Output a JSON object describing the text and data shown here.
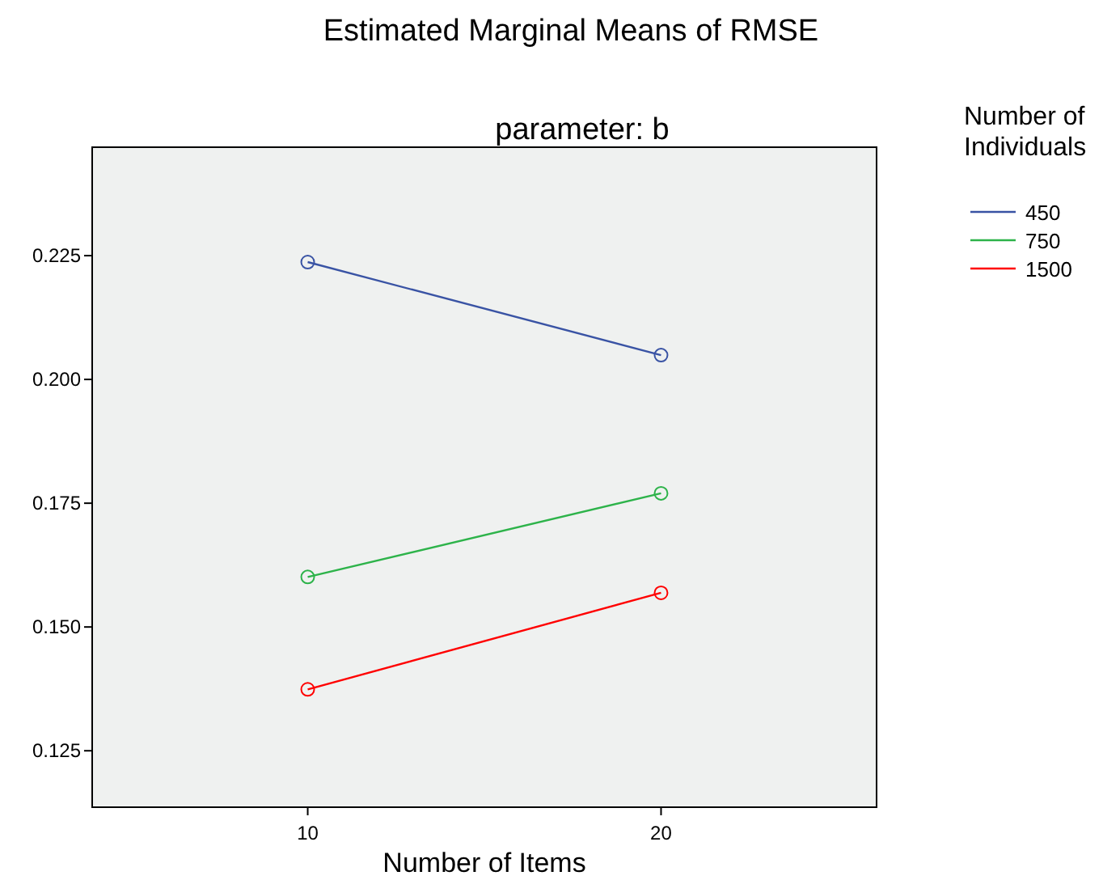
{
  "chart_data": {
    "type": "line",
    "title": "Estimated Marginal Means of RMSE",
    "subtitle": "parameter: b",
    "xlabel": "Number of Items",
    "legend_title": "Number of Individuals",
    "x": [
      10,
      20
    ],
    "xlim": [
      3.9,
      26.1
    ],
    "xticks": [
      10,
      20
    ],
    "ylim": [
      0.1136,
      0.2469
    ],
    "yticks": [
      {
        "value": 0.125,
        "label": "0.125"
      },
      {
        "value": 0.15,
        "label": "0.150"
      },
      {
        "value": 0.175,
        "label": "0.175"
      },
      {
        "value": 0.2,
        "label": "0.200"
      },
      {
        "value": 0.225,
        "label": "0.225"
      }
    ],
    "grid": false,
    "legend": "right",
    "marker": "circle",
    "line_style": "solid",
    "series": [
      {
        "name": "450",
        "color": "#3953a4",
        "values": [
          0.2237,
          0.2049
        ]
      },
      {
        "name": "750",
        "color": "#2db34a",
        "values": [
          0.1601,
          0.177
        ]
      },
      {
        "name": "1500",
        "color": "#ff0000",
        "values": [
          0.1374,
          0.1569
        ]
      }
    ]
  }
}
